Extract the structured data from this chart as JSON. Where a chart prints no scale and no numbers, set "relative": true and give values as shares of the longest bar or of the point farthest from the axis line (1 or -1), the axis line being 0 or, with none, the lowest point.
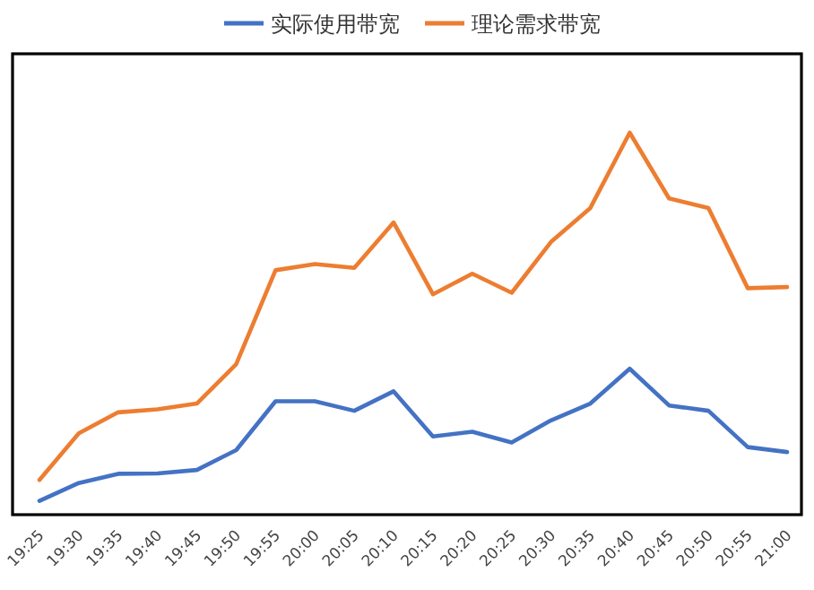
{
  "chart_data": {
    "type": "line",
    "relative": true,
    "legend": "top",
    "categories": [
      "19:25",
      "19:30",
      "19:35",
      "19:40",
      "19:45",
      "19:50",
      "19:55",
      "20:00",
      "20:05",
      "20:10",
      "20:15",
      "20:20",
      "20:25",
      "20:30",
      "20:35",
      "20:40",
      "20:45",
      "20:50",
      "20:55",
      "21:00"
    ],
    "series": [
      {
        "name": "实际使用带宽",
        "color": "#4472c4",
        "values": [
          0.036,
          0.083,
          0.107,
          0.108,
          0.117,
          0.169,
          0.297,
          0.297,
          0.272,
          0.323,
          0.205,
          0.217,
          0.189,
          0.247,
          0.291,
          0.382,
          0.286,
          0.272,
          0.177,
          0.164
        ]
      },
      {
        "name": "理论需求带宽",
        "color": "#ed7d31",
        "values": [
          0.091,
          0.213,
          0.268,
          0.276,
          0.291,
          0.394,
          0.64,
          0.656,
          0.646,
          0.765,
          0.577,
          0.631,
          0.581,
          0.714,
          0.803,
          1,
          0.828,
          0.803,
          0.593,
          0.596
        ]
      }
    ]
  }
}
